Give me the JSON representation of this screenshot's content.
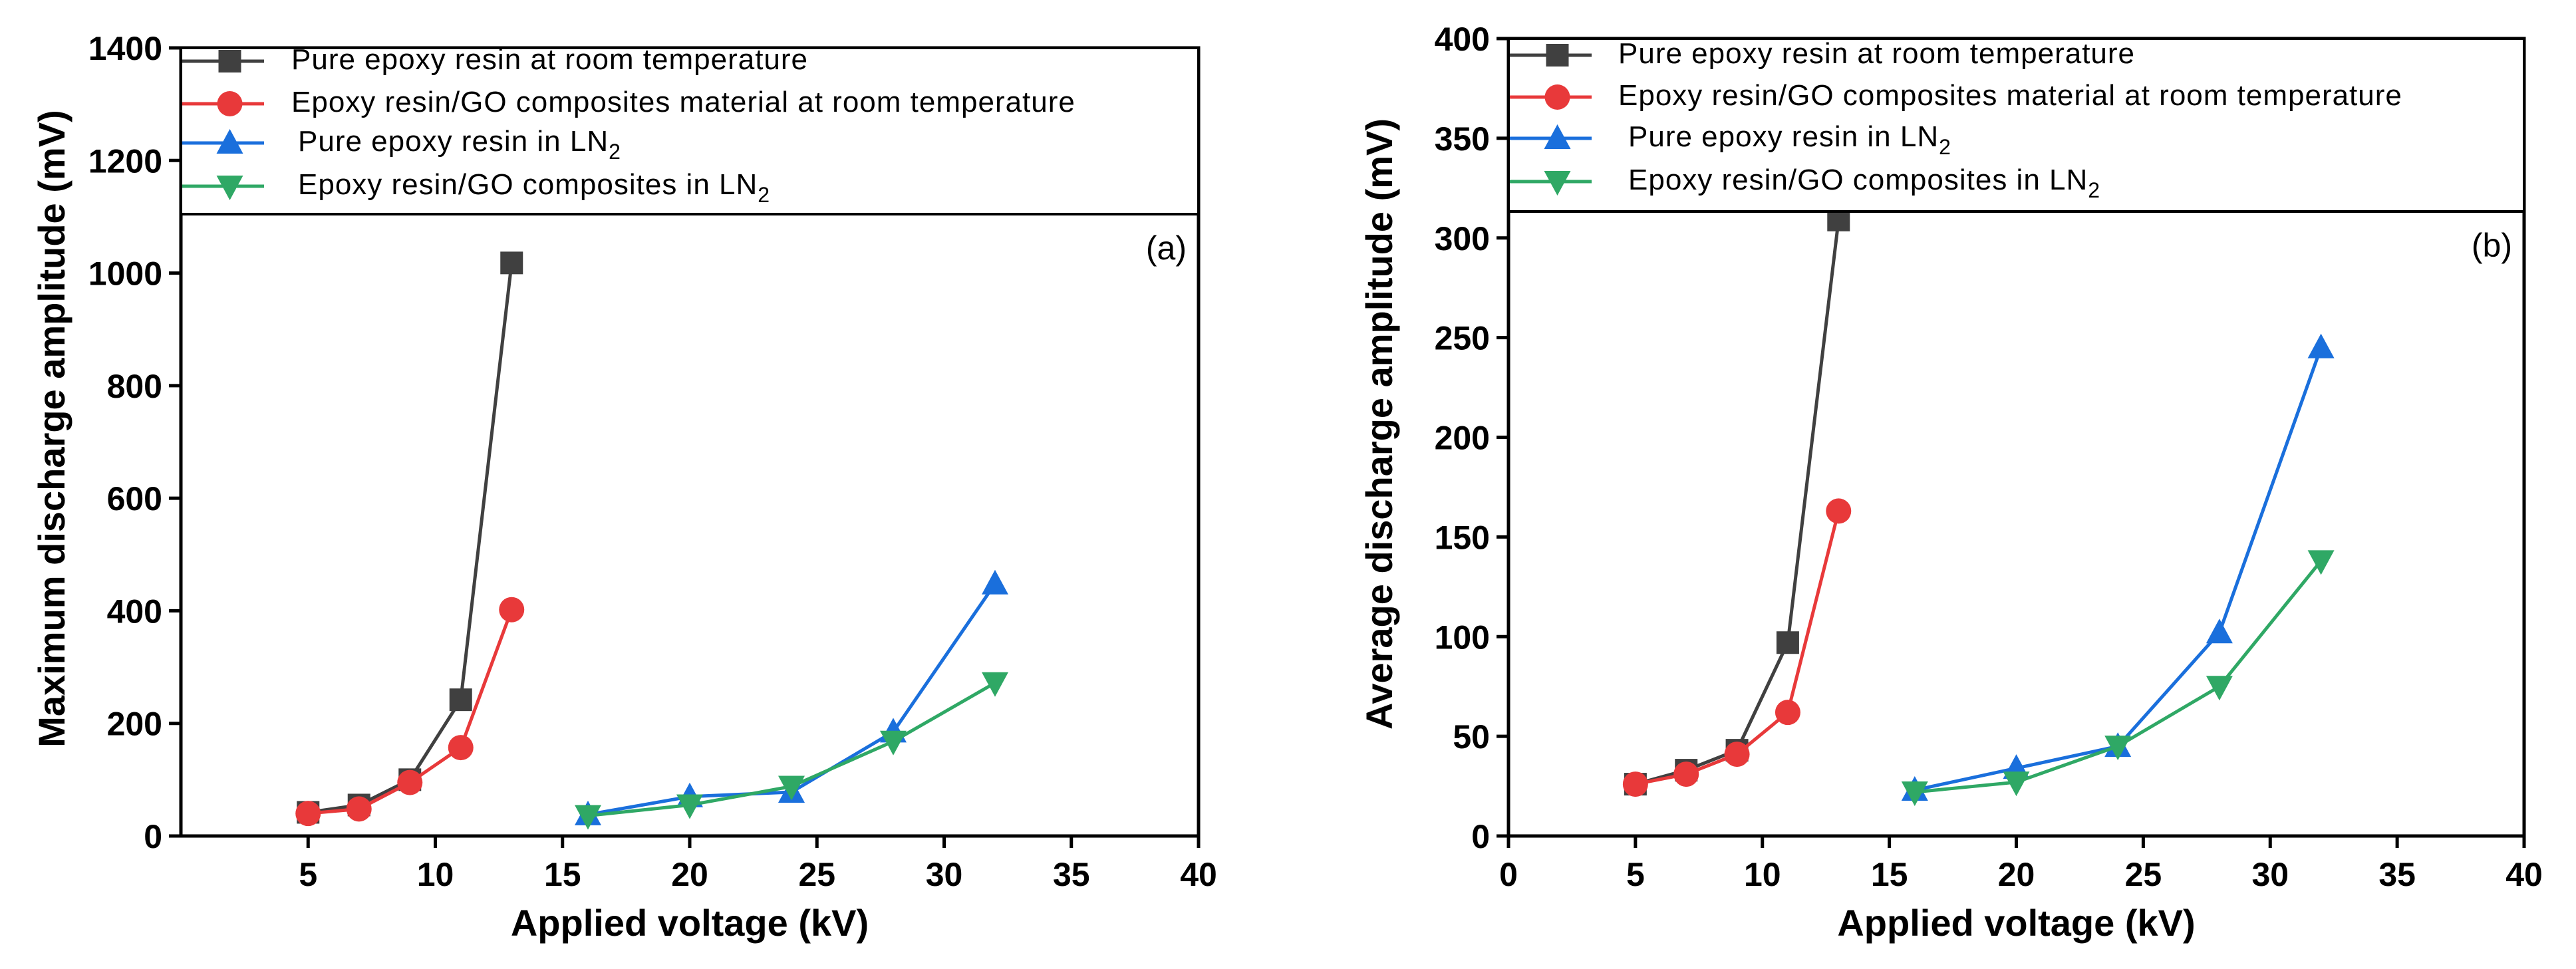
{
  "chart_data": [
    {
      "type": "line",
      "panel_label": "(a)",
      "xlabel": "Applied voltage (kV)",
      "ylabel": "Maximum discharge amplitude (mV)",
      "xlim": [
        0,
        40
      ],
      "ylim": [
        0,
        1400
      ],
      "xticks": [
        5,
        10,
        15,
        20,
        25,
        30,
        35,
        40
      ],
      "yticks": [
        0,
        200,
        400,
        600,
        800,
        1000,
        1200,
        1400
      ],
      "x_tick_labels": [
        "5",
        "10",
        "15",
        "20",
        "25",
        "30",
        "35",
        "40"
      ],
      "y_tick_labels": [
        "0",
        "200",
        "400",
        "600",
        "800",
        "1000",
        "1200",
        "1400"
      ],
      "legend_position": "top",
      "series": [
        {
          "name": "Pure epoxy resin at room temperature",
          "legend_main": "Pure epoxy resin at room temperature",
          "legend_sub": "",
          "color": "#404040",
          "marker": "square",
          "x": [
            5,
            7,
            9,
            11,
            13
          ],
          "values": [
            42,
            55,
            100,
            242,
            1018
          ]
        },
        {
          "name": "Epoxy resin/GO composites material at room temperature",
          "legend_main": "Epoxy resin/GO composites material at room temperature",
          "legend_sub": "",
          "color": "#e8393a",
          "marker": "circle",
          "x": [
            5,
            7,
            9,
            11,
            13
          ],
          "values": [
            40,
            48,
            95,
            157,
            402
          ]
        },
        {
          "name": "Pure epoxy resin in LN2",
          "legend_main": "Pure epoxy resin in LN",
          "legend_sub": "2",
          "color": "#1a6fdc",
          "marker": "triangle-up",
          "x": [
            16,
            20,
            24,
            28,
            32
          ],
          "values": [
            38,
            70,
            78,
            185,
            448
          ]
        },
        {
          "name": "Epoxy resin/GO composites in LN2",
          "legend_main": "Epoxy resin/GO composites in LN",
          "legend_sub": "2",
          "color": "#2fa865",
          "marker": "triangle-down",
          "x": [
            16,
            20,
            24,
            28,
            32
          ],
          "values": [
            36,
            55,
            88,
            168,
            272
          ]
        }
      ]
    },
    {
      "type": "line",
      "panel_label": "(b)",
      "xlabel": "Applied voltage (kV)",
      "ylabel": "Average discharge amplitude (mV)",
      "xlim": [
        0,
        40
      ],
      "ylim": [
        0,
        400
      ],
      "xticks": [
        0,
        5,
        10,
        15,
        20,
        25,
        30,
        35,
        40
      ],
      "yticks": [
        0,
        50,
        100,
        150,
        200,
        250,
        300,
        350,
        400
      ],
      "x_tick_labels": [
        "0",
        "5",
        "10",
        "15",
        "20",
        "25",
        "30",
        "35",
        "40"
      ],
      "y_tick_labels": [
        "0",
        "50",
        "100",
        "150",
        "200",
        "250",
        "300",
        "350",
        "400"
      ],
      "legend_position": "top",
      "series": [
        {
          "name": "Pure epoxy resin at room temperature",
          "legend_main": "Pure epoxy resin at room temperature",
          "legend_sub": "",
          "color": "#404040",
          "marker": "square",
          "x": [
            5,
            7,
            9,
            11,
            13
          ],
          "values": [
            26,
            33,
            43,
            97,
            309
          ]
        },
        {
          "name": "Epoxy resin/GO composites material at room temperature",
          "legend_main": "Epoxy resin/GO composites material at room temperature",
          "legend_sub": "",
          "color": "#e8393a",
          "marker": "circle",
          "x": [
            5,
            7,
            9,
            11,
            13
          ],
          "values": [
            26,
            31,
            41,
            62,
            163
          ]
        },
        {
          "name": "Pure epoxy resin in LN2",
          "legend_main": "Pure epoxy resin in LN",
          "legend_sub": "2",
          "color": "#1a6fdc",
          "marker": "triangle-up",
          "x": [
            16,
            20,
            24,
            28,
            32
          ],
          "values": [
            23,
            34,
            45,
            102,
            245
          ]
        },
        {
          "name": "Epoxy resin/GO composites in LN2",
          "legend_main": "Epoxy resin/GO composites in LN",
          "legend_sub": "2",
          "color": "#2fa865",
          "marker": "triangle-down",
          "x": [
            16,
            20,
            24,
            28,
            32
          ],
          "values": [
            22,
            27,
            45,
            75,
            138
          ]
        }
      ]
    }
  ]
}
